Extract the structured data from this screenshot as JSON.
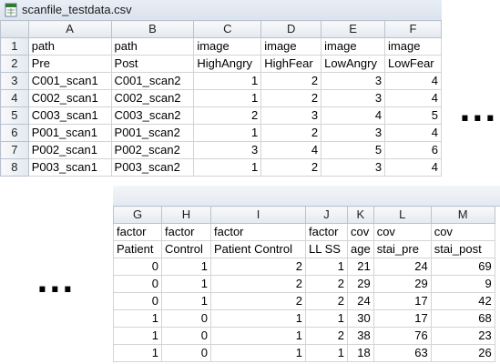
{
  "window1": {
    "title": "scanfile_testdata.csv",
    "columns": [
      "A",
      "B",
      "C",
      "D",
      "E",
      "F"
    ],
    "rows": [
      {
        "row": "1",
        "cells": [
          "path",
          "path",
          "image",
          "image",
          "image",
          "image"
        ]
      },
      {
        "row": "2",
        "cells": [
          "Pre",
          "Post",
          "HighAngry",
          "HighFear",
          "LowAngry",
          "LowFear"
        ]
      },
      {
        "row": "3",
        "cells": [
          "C001_scan1",
          "C001_scan2",
          "1",
          "2",
          "3",
          "4"
        ]
      },
      {
        "row": "4",
        "cells": [
          "C002_scan1",
          "C002_scan2",
          "1",
          "2",
          "3",
          "4"
        ]
      },
      {
        "row": "5",
        "cells": [
          "C003_scan1",
          "C003_scan2",
          "2",
          "3",
          "4",
          "5"
        ]
      },
      {
        "row": "6",
        "cells": [
          "P001_scan1",
          "P001_scan2",
          "1",
          "2",
          "3",
          "4"
        ]
      },
      {
        "row": "7",
        "cells": [
          "P002_scan1",
          "P002_scan2",
          "3",
          "4",
          "5",
          "6"
        ]
      },
      {
        "row": "8",
        "cells": [
          "P003_scan1",
          "P003_scan2",
          "1",
          "2",
          "3",
          "4"
        ]
      }
    ]
  },
  "window2": {
    "columns": [
      "G",
      "H",
      "I",
      "J",
      "K",
      "L",
      "M"
    ],
    "rows": [
      {
        "cells": [
          "factor",
          "factor",
          "factor",
          "factor",
          "cov",
          "cov",
          "cov"
        ]
      },
      {
        "cells": [
          "Patient",
          "Control",
          "Patient Control",
          "LL SS",
          "age",
          "stai_pre",
          "stai_post"
        ]
      },
      {
        "cells": [
          "0",
          "1",
          "2",
          "1",
          "21",
          "24",
          "69"
        ]
      },
      {
        "cells": [
          "0",
          "1",
          "2",
          "2",
          "29",
          "29",
          "9"
        ]
      },
      {
        "cells": [
          "0",
          "1",
          "2",
          "2",
          "24",
          "17",
          "42"
        ]
      },
      {
        "cells": [
          "1",
          "0",
          "1",
          "1",
          "30",
          "17",
          "68"
        ]
      },
      {
        "cells": [
          "1",
          "0",
          "1",
          "2",
          "38",
          "76",
          "23"
        ]
      },
      {
        "cells": [
          "1",
          "0",
          "1",
          "1",
          "18",
          "63",
          "26"
        ]
      }
    ]
  },
  "ellipsis": "..."
}
